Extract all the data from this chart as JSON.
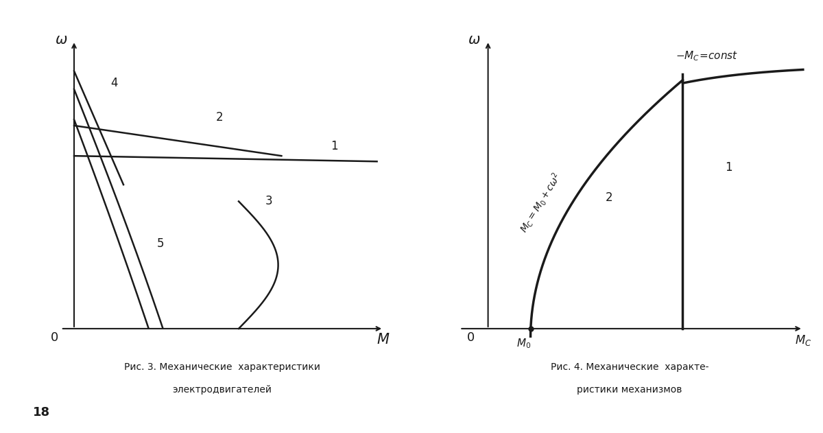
{
  "fig_width": 12.0,
  "fig_height": 6.31,
  "bg_color": "#ffffff",
  "line_color": "#1a1a1a",
  "caption1_line1": "Рис. 3. Механические  характеристики",
  "caption1_line2": "электродвигателей",
  "caption2_line1": "Рис. 4. Механические  характе-",
  "caption2_line2": "ристики механизмов",
  "page_number": "18"
}
